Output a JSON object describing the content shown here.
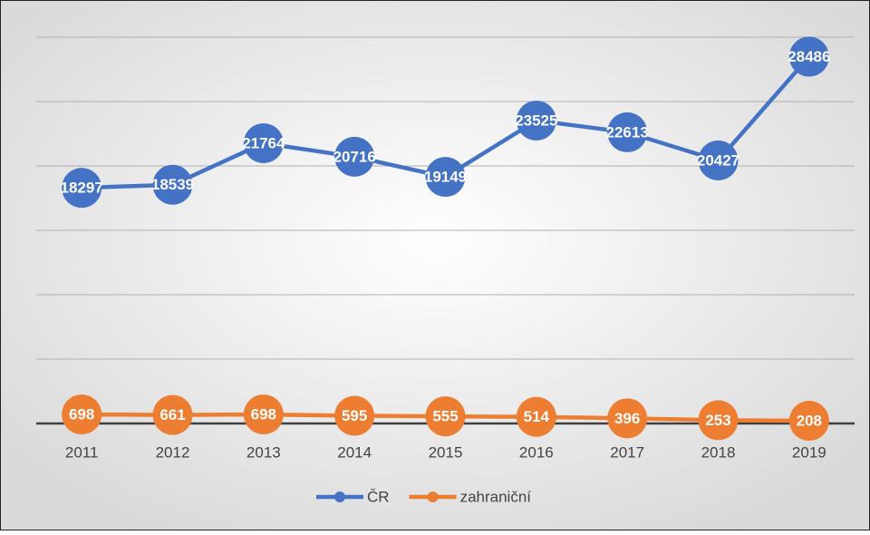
{
  "chart_data": {
    "type": "line",
    "categories": [
      "2011",
      "2012",
      "2013",
      "2014",
      "2015",
      "2016",
      "2017",
      "2018",
      "2019"
    ],
    "series": [
      {
        "name": "ČR",
        "color": "#4472c4",
        "values": [
          18297,
          18539,
          21764,
          20716,
          19149,
          23525,
          22613,
          20427,
          28486
        ]
      },
      {
        "name": "zahraniční",
        "color": "#ed7d31",
        "values": [
          698,
          661,
          698,
          595,
          555,
          514,
          396,
          253,
          208
        ]
      }
    ],
    "ylim": [
      0,
      30000
    ],
    "yticks": [
      0,
      5000,
      10000,
      15000,
      20000,
      25000,
      30000
    ],
    "grid": true,
    "legend": "bottom"
  }
}
